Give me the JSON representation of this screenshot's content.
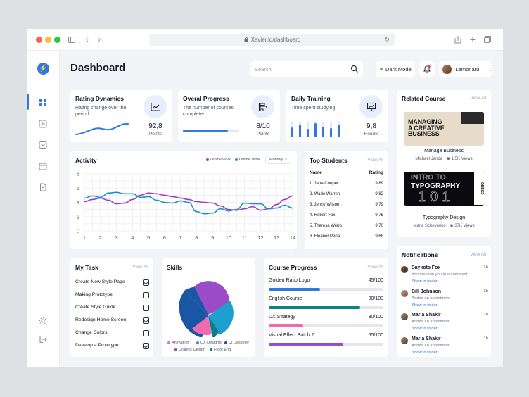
{
  "browser": {
    "url": "Xavier.ld/dashboard"
  },
  "header": {
    "title": "Dashboard",
    "search_placeholder": "Search",
    "dark_mode_label": "Dark Mode",
    "user_name": "Lemonaru"
  },
  "stats": [
    {
      "title": "Rating Dynamics",
      "subtitle": "Rating change over the period",
      "value": "92,8",
      "unit": "Points"
    },
    {
      "title": "Overal Progress",
      "subtitle": "The number of courses completed",
      "value": "8/10",
      "unit": "Points",
      "progress": 0.8
    },
    {
      "title": "Daily Training",
      "subtitle": "Time spent studying",
      "value": "9,8",
      "unit": "Hourse"
    }
  ],
  "activity": {
    "title": "Activity",
    "legend_online": "Online work",
    "legend_offline": "Offline Work",
    "period": "Monthly",
    "colors": {
      "online": "#9a3fbf",
      "offline": "#1b93c4"
    },
    "y_ticks": [
      "8",
      "6",
      "4",
      "2",
      "0"
    ],
    "x_ticks": [
      "1",
      "2",
      "3",
      "4",
      "5",
      "6",
      "7",
      "8",
      "9",
      "10",
      "11",
      "12",
      "13",
      "14"
    ]
  },
  "chart_data": {
    "type": "line",
    "title": "Activity",
    "xlabel": "",
    "ylabel": "",
    "x": [
      1,
      1.5,
      2,
      2.5,
      3,
      3.5,
      4,
      4.5,
      5,
      5.5,
      6,
      6.5,
      7,
      7.5,
      8,
      8.5,
      9,
      9.5,
      10,
      10.5,
      11,
      11.5,
      12,
      12.5,
      13,
      13.5,
      14
    ],
    "ylim": [
      0,
      8
    ],
    "grid": true,
    "legend": "top-right",
    "series": [
      {
        "name": "Online work",
        "color": "#9a3fbf",
        "values": [
          4.1,
          4.4,
          4.6,
          4.3,
          3.8,
          3.9,
          4.4,
          5.0,
          5.3,
          5.2,
          5.0,
          4.8,
          4.6,
          4.4,
          4.1,
          4.0,
          3.9,
          3.5,
          3.0,
          2.9,
          3.1,
          3.4,
          2.9,
          3.1,
          3.7,
          4.4,
          4.9
        ]
      },
      {
        "name": "Offline Work",
        "color": "#1b93c4",
        "values": [
          4.6,
          4.9,
          4.7,
          5.3,
          5.4,
          5.2,
          5.2,
          4.7,
          4.8,
          4.3,
          4.0,
          3.9,
          4.2,
          4.0,
          2.7,
          2.4,
          2.5,
          3.1,
          2.8,
          3.0,
          3.9,
          3.8,
          3.8,
          3.1,
          3.2,
          3.6,
          3.2
        ]
      }
    ]
  },
  "top_students": {
    "title": "Top Students",
    "view_all": "View All",
    "col_name": "Name",
    "col_rating": "Rating",
    "rows": [
      {
        "name": "1. Jane Cooper",
        "rating": "9,89"
      },
      {
        "name": "2. Wade Warren",
        "rating": "9.82"
      },
      {
        "name": "3. Jenny Wilson",
        "rating": "9,79"
      },
      {
        "name": "4. Robert Fox",
        "rating": "9,75"
      },
      {
        "name": "5. Theresa Webb",
        "rating": "9,70"
      },
      {
        "name": "6. Eleanor Pena",
        "rating": "9,68"
      }
    ]
  },
  "tasks": {
    "title": "My Task",
    "view_all": "View All",
    "items": [
      {
        "label": "Create New Style Page",
        "done": true
      },
      {
        "label": "Making Prototype",
        "done": false
      },
      {
        "label": "Create Style Guide",
        "done": false
      },
      {
        "label": "Redesign Home Screen",
        "done": true
      },
      {
        "label": "Change Colors",
        "done": false
      },
      {
        "label": "Develop a Prototype",
        "done": true
      }
    ]
  },
  "skills": {
    "title": "Skills",
    "legend": [
      {
        "label": "Animation",
        "color": "#f06ab0"
      },
      {
        "label": "UX Designer",
        "color": "#1e9fcf"
      },
      {
        "label": "UI Designer",
        "color": "#1b55a6"
      },
      {
        "label": "Graphic Design",
        "color": "#9a4dc7"
      },
      {
        "label": "Front End",
        "color": "#0f7f86"
      }
    ]
  },
  "course_progress": {
    "title": "Course Progress",
    "view_all": "View All",
    "items": [
      {
        "name": "Golden Ratio Logo",
        "value": "45/100",
        "fraction": 0.45,
        "color": "#2f78e6"
      },
      {
        "name": "English Course",
        "value": "80/100",
        "fraction": 0.8,
        "color": "#0f7f86"
      },
      {
        "name": "UX Strategy",
        "value": "30/100",
        "fraction": 0.3,
        "color": "#f06ab0"
      },
      {
        "name": "Visual Effect Batch 2",
        "value": "65/100",
        "fraction": 0.65,
        "color": "#9a4dc7"
      }
    ]
  },
  "related_course": {
    "title": "Related Course",
    "view_all": "View All",
    "courses": [
      {
        "cover_line1": "MANAGING",
        "cover_line2": "A CREATIVE",
        "cover_line3": "BUSINESS",
        "name": "Manage Business",
        "author": "Michael Janda",
        "views": "1,5K Views"
      },
      {
        "cover_line1": "INTRO TO",
        "cover_line2": "TYPOGRAPHY",
        "cover_line3": "101",
        "cover_side": "GEEKS",
        "name": "Typography Design",
        "author": "Maria Schevenko",
        "views": "37K Views"
      }
    ]
  },
  "notifications": {
    "title": "Notifications",
    "view_all": "View All",
    "items": [
      {
        "name": "Saykots Fox",
        "desc": "You mention you in a comment...",
        "link": "Show in folder",
        "time": "1h"
      },
      {
        "name": "Bill Johnson",
        "desc": "Added an apointment",
        "link": "Show in folder",
        "time": "3h"
      },
      {
        "name": "Maria Shakir",
        "desc": "Added an apointment",
        "link": "Show in folder",
        "time": "7h"
      },
      {
        "name": "Maria Shakir",
        "desc": "Added an apointment",
        "link": "Show in folder",
        "time": "1h"
      }
    ]
  }
}
